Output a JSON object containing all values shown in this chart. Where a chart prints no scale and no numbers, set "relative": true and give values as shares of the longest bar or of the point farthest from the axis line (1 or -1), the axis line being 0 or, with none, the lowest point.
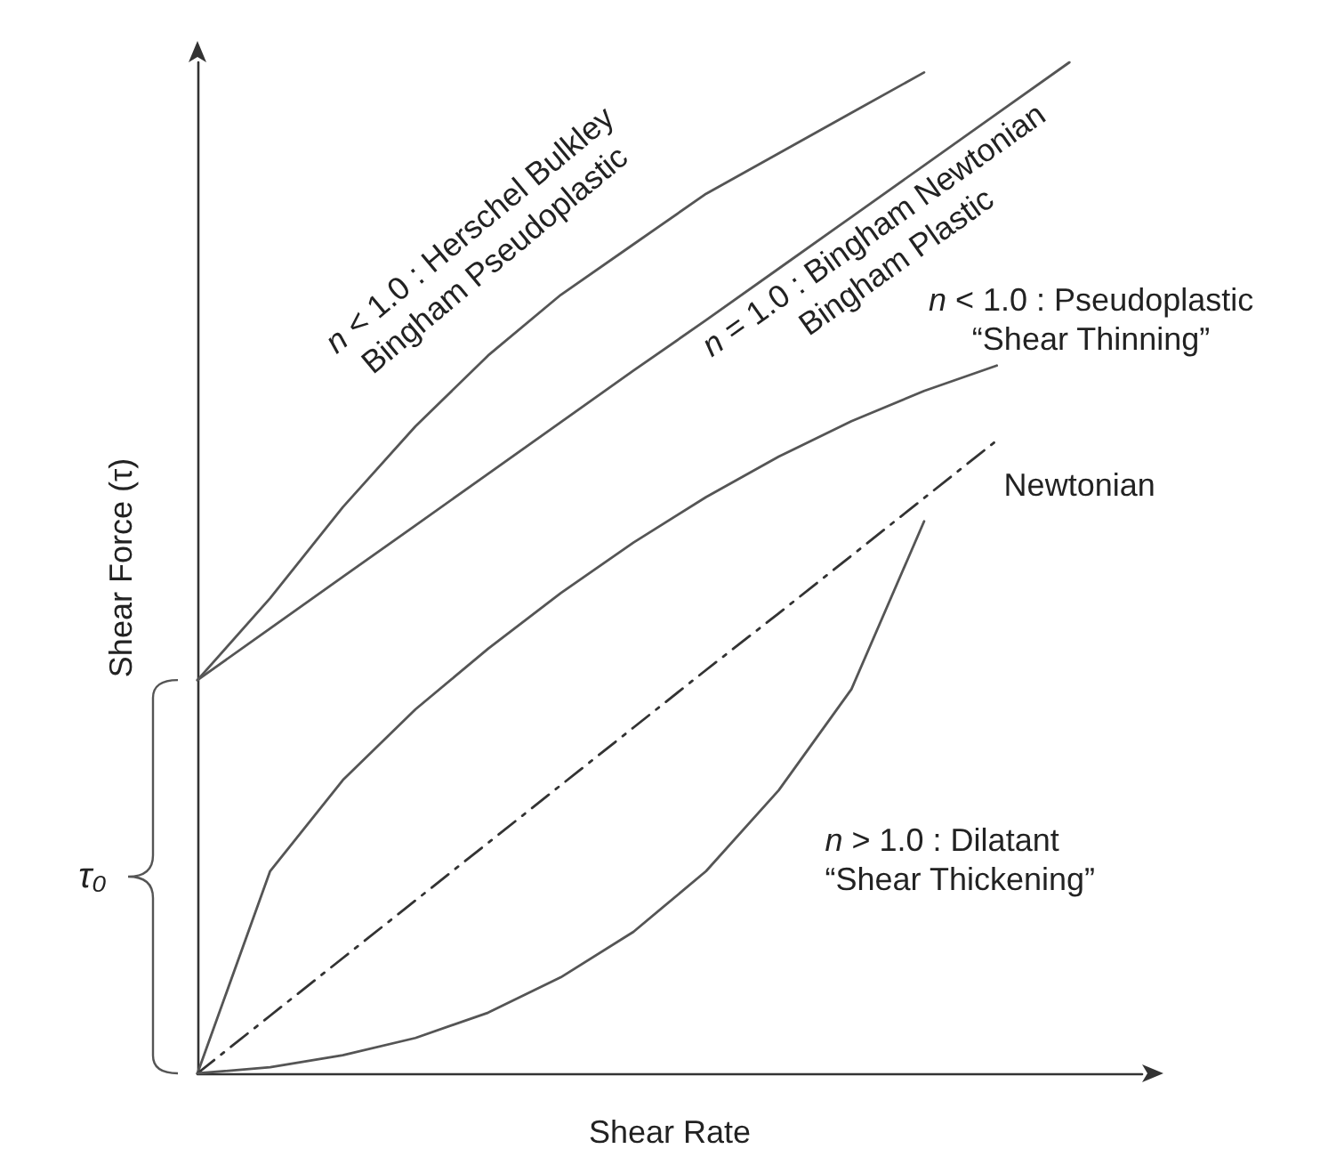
{
  "chart_data": {
    "type": "line",
    "relative": true,
    "xlabel": "Shear Rate",
    "ylabel": "Shear Force (τ)",
    "categories": [
      null,
      null,
      null,
      null,
      null,
      null,
      null,
      null,
      null,
      null,
      null,
      null,
      null,
      null
    ],
    "grid": false,
    "legend": false,
    "marker": "none",
    "series": [
      {
        "name": "n < 1.0 : Herschel Bulkley\nBingham Pseudoplastic",
        "color": "#555555",
        "values": [
          0.389,
          0.47,
          0.56,
          0.64,
          0.71,
          0.77,
          0.82,
          0.87,
          0.91,
          0.95,
          0.99,
          null,
          null,
          null
        ]
      },
      {
        "name": "n = 1.0 : Bingham Newtonian\nBingham Plastic",
        "color": "#555555",
        "values": [
          0.389,
          0.44,
          0.491,
          0.542,
          0.593,
          0.644,
          0.695,
          0.745,
          0.796,
          0.847,
          0.898,
          0.949,
          1.0,
          null
        ]
      },
      {
        "name": "n < 1.0 : Pseudoplastic\n“Shear Thinning”",
        "color": "#555555",
        "values": [
          0,
          0.2,
          0.29,
          0.36,
          0.42,
          0.475,
          0.525,
          0.57,
          0.61,
          0.645,
          0.675,
          0.7,
          null,
          null
        ]
      },
      {
        "name": "Newtonian",
        "color": "#333333",
        "line_style": "dashed",
        "values": [
          0,
          0.057,
          0.114,
          0.171,
          0.228,
          0.285,
          0.342,
          0.399,
          0.455,
          0.512,
          0.569,
          0.626,
          null,
          null
        ]
      },
      {
        "name": "n > 1.0 : Dilatant\n“Shear Thickening”",
        "color": "#555555",
        "values": [
          0,
          0.006,
          0.018,
          0.035,
          0.06,
          0.095,
          0.14,
          0.2,
          0.28,
          0.38,
          0.546,
          null,
          null,
          null
        ]
      }
    ],
    "annotations": [
      "τ₀"
    ]
  }
}
